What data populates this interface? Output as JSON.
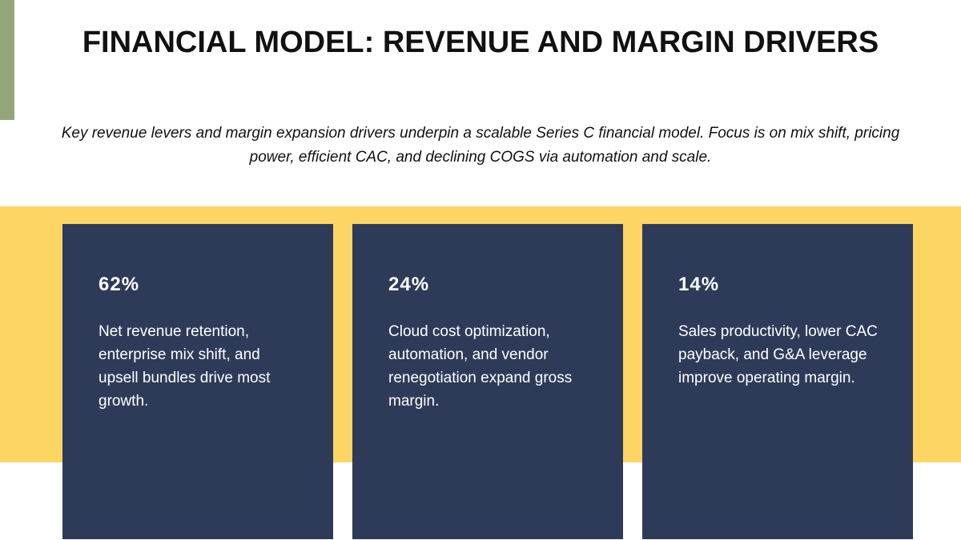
{
  "header": {
    "title": "FINANCIAL MODEL: REVENUE AND MARGIN DRIVERS",
    "subtitle": "Key revenue levers and margin expansion drivers underpin a scalable Series C financial model. Focus is on mix shift, pricing power, efficient CAC, and declining COGS via automation and scale."
  },
  "cards": [
    {
      "stat": "62%",
      "text": "Net revenue retention, enterprise mix shift, and upsell bundles drive most growth."
    },
    {
      "stat": "24%",
      "text": "Cloud cost optimization, automation, and vendor renegotiation expand gross margin."
    },
    {
      "stat": "14%",
      "text": "Sales productivity, lower CAC payback, and G&A leverage improve operating margin."
    }
  ]
}
